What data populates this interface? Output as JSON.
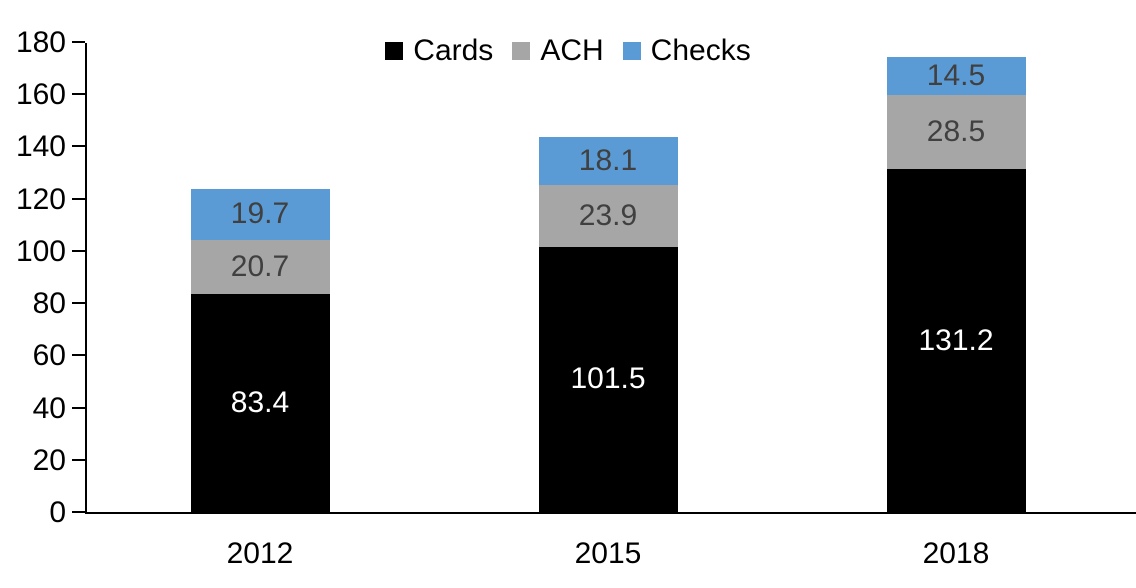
{
  "chart_data": {
    "type": "bar",
    "stacked": true,
    "title": "",
    "xlabel": "",
    "ylabel": "",
    "categories": [
      "2012",
      "2015",
      "2018"
    ],
    "series": [
      {
        "name": "Cards",
        "color": "#000000",
        "label_color": "#ffffff",
        "values": [
          83.4,
          101.5,
          131.2
        ]
      },
      {
        "name": "ACH",
        "color": "#a6a6a6",
        "label_color": "#404040",
        "values": [
          20.7,
          23.9,
          28.5
        ]
      },
      {
        "name": "Checks",
        "color": "#5b9bd5",
        "label_color": "#404040",
        "values": [
          19.7,
          18.1,
          14.5
        ]
      }
    ],
    "totals": [
      123.8,
      143.5,
      174.2
    ],
    "ylim": [
      0,
      180
    ],
    "yticks": [
      0,
      20,
      40,
      60,
      80,
      100,
      120,
      140,
      160,
      180
    ],
    "grid": false,
    "legend_position": "top-center",
    "axis_color": "#000000",
    "background_color": "#ffffff"
  }
}
